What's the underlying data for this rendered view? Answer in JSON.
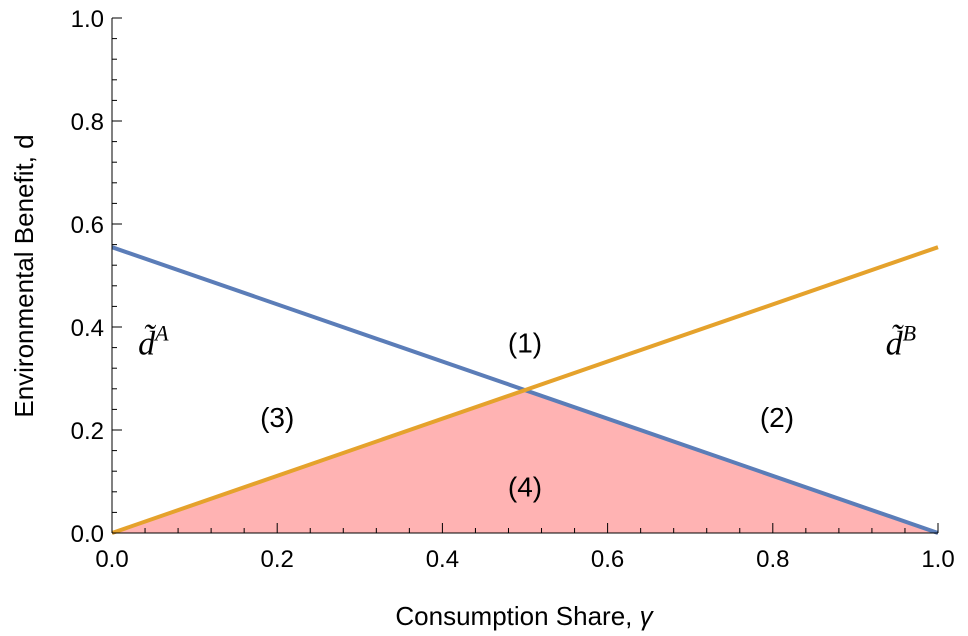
{
  "chart_data": {
    "type": "line",
    "xlabel": "Consumption Share, ",
    "xlabel_symbol": "γ",
    "ylabel": "Environmental Benefit, d",
    "xlim": [
      0,
      1
    ],
    "ylim": [
      0,
      1
    ],
    "x_ticks": [
      "0.0",
      "0.2",
      "0.4",
      "0.6",
      "0.8",
      "1.0"
    ],
    "y_ticks": [
      "0.0",
      "0.2",
      "0.4",
      "0.6",
      "0.8",
      "1.0"
    ],
    "series": [
      {
        "name": "d̃A",
        "color": "#5b7db8",
        "x": [
          0,
          1
        ],
        "y": [
          0.555,
          0
        ]
      },
      {
        "name": "d̃B",
        "color": "#e5a22c",
        "x": [
          0,
          1
        ],
        "y": [
          0,
          0.555
        ]
      }
    ],
    "shaded_region": {
      "label": "(4)",
      "color": "#ffb3b3",
      "x": [
        0,
        0.5,
        1
      ],
      "y": [
        0,
        0.2775,
        0
      ]
    },
    "curve_labels": [
      {
        "base": "d̃",
        "sup": "A",
        "x": 0.05,
        "y": 0.37
      },
      {
        "base": "d̃",
        "sup": "B",
        "x": 0.955,
        "y": 0.37
      }
    ],
    "region_labels": [
      {
        "text": "(1)",
        "x": 0.5,
        "y": 0.37
      },
      {
        "text": "(2)",
        "x": 0.805,
        "y": 0.225
      },
      {
        "text": "(3)",
        "x": 0.2,
        "y": 0.225
      },
      {
        "text": "(4)",
        "x": 0.5,
        "y": 0.09
      }
    ],
    "grid": false
  }
}
